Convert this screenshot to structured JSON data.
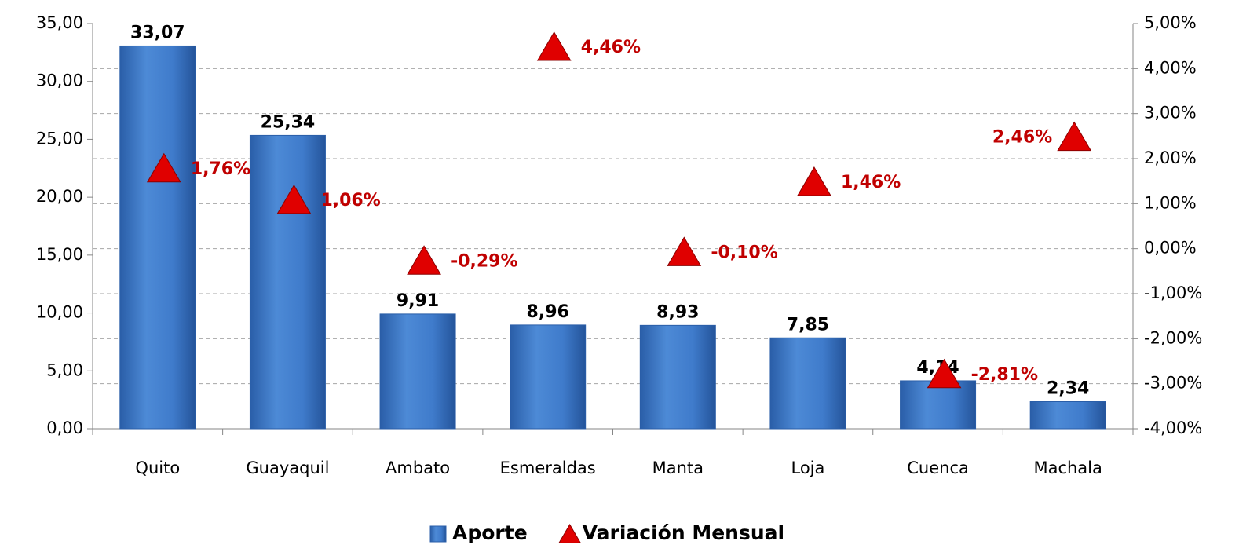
{
  "chart_data": {
    "type": "bar",
    "categories": [
      "Quito",
      "Guayaquil",
      "Ambato",
      "Esmeraldas",
      "Manta",
      "Loja",
      "Cuenca",
      "Machala"
    ],
    "series": [
      {
        "name": "Aporte",
        "type": "bar",
        "color": "#3f7bcb",
        "values": [
          33.07,
          25.34,
          9.91,
          8.96,
          8.93,
          7.85,
          4.14,
          2.34
        ],
        "value_labels": [
          "33,07",
          "25,34",
          "9,91",
          "8,96",
          "8,93",
          "7,85",
          "4,14",
          "2,34"
        ]
      },
      {
        "name": "Variación Mensual",
        "type": "scatter",
        "axis": "y2",
        "color": "#e00000",
        "values": [
          1.76,
          1.06,
          -0.29,
          4.46,
          -0.1,
          1.46,
          -2.81,
          2.46
        ],
        "value_labels": [
          "1,76%",
          "1,06%",
          "-0,29%",
          "4,46%",
          "-0,10%",
          "1,46%",
          "-2,81%",
          "2,46%"
        ]
      }
    ],
    "ylim": [
      0,
      35
    ],
    "yticks": [
      {
        "value": 0,
        "label": "0,00"
      },
      {
        "value": 5,
        "label": "5,00"
      },
      {
        "value": 10,
        "label": "10,00"
      },
      {
        "value": 15,
        "label": "15,00"
      },
      {
        "value": 20,
        "label": "20,00"
      },
      {
        "value": 25,
        "label": "25,00"
      },
      {
        "value": 30,
        "label": "30,00"
      },
      {
        "value": 35,
        "label": "35,00"
      }
    ],
    "y2lim": [
      -4,
      5
    ],
    "y2ticks": [
      {
        "value": -4,
        "label": "-4,00%"
      },
      {
        "value": -3,
        "label": "-3,00%"
      },
      {
        "value": -2,
        "label": "-2,00%"
      },
      {
        "value": -1,
        "label": "-1,00%"
      },
      {
        "value": 0,
        "label": "0,00%"
      },
      {
        "value": 1,
        "label": "1,00%"
      },
      {
        "value": 2,
        "label": "2,00%"
      },
      {
        "value": 3,
        "label": "3,00%"
      },
      {
        "value": 4,
        "label": "4,00%"
      },
      {
        "value": 5,
        "label": "5,00%"
      }
    ],
    "grid": true,
    "legend": "bottom"
  }
}
